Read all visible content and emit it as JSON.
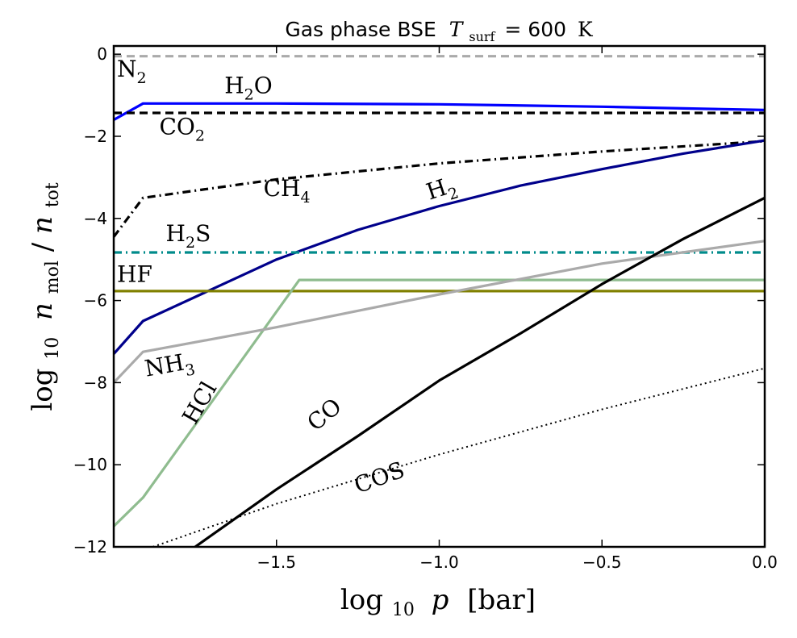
{
  "chart_data": {
    "type": "line",
    "title": "Gas phase BSE T_surf = 600 K",
    "title_parts": {
      "prefix": "Gas phase BSE",
      "math": "T",
      "sub": "surf",
      "eq": "= 600",
      "unit": "K"
    },
    "xlabel": "log10 p [bar]",
    "xlabel_parts": {
      "fn": "log",
      "sub": "10",
      "var": "p",
      "unit": "[bar]"
    },
    "ylabel": "log10 n_mol / n_tot",
    "ylabel_parts": {
      "fn": "log",
      "sub": "10",
      "num": "n",
      "num_sub": "mol",
      "den": "n",
      "den_sub": "tot"
    },
    "xlim": [
      -2.0,
      0.0
    ],
    "ylim": [
      -12,
      0.2
    ],
    "xticks": [
      {
        "value": -1.5,
        "label": "−1.5"
      },
      {
        "value": -1.0,
        "label": "−1.0"
      },
      {
        "value": -0.5,
        "label": "−0.5"
      },
      {
        "value": 0.0,
        "label": "0.0"
      }
    ],
    "yticks": [
      {
        "value": 0,
        "label": "0"
      },
      {
        "value": -2,
        "label": "−2"
      },
      {
        "value": -4,
        "label": "−4"
      },
      {
        "value": -6,
        "label": "−6"
      },
      {
        "value": -8,
        "label": "−8"
      },
      {
        "value": -10,
        "label": "−10"
      },
      {
        "value": -12,
        "label": "−12"
      }
    ],
    "grid": false,
    "series": [
      {
        "name": "N2",
        "label": "N",
        "label_sub": "2",
        "color": "#aaaaaa",
        "dash": "dashed",
        "x": [
          -2.0,
          0.0
        ],
        "y": [
          -0.05,
          -0.05
        ],
        "label_at": [
          -1.99,
          -0.55
        ],
        "label_rot": 0
      },
      {
        "name": "H2O",
        "label": "H",
        "label_sub": "2",
        "label_tail": "O",
        "color": "#0000ff",
        "dash": "solid",
        "x": [
          -2.0,
          -1.91,
          -1.5,
          -1.0,
          -0.5,
          0.0
        ],
        "y": [
          -1.6,
          -1.2,
          -1.2,
          -1.22,
          -1.28,
          -1.36
        ],
        "label_at": [
          -1.66,
          -0.95
        ],
        "label_rot": 0
      },
      {
        "name": "CO2",
        "label": "CO",
        "label_sub": "2",
        "color": "#000000",
        "dash": "dashed",
        "x": [
          -2.0,
          0.0
        ],
        "y": [
          -1.43,
          -1.43
        ],
        "label_at": [
          -1.86,
          -1.95
        ],
        "label_rot": 0
      },
      {
        "name": "CH4",
        "label": "CH",
        "label_sub": "4",
        "color": "#000000",
        "dash": "dashdot",
        "x": [
          -2.0,
          -1.91,
          -1.5,
          -1.0,
          -0.5,
          0.0
        ],
        "y": [
          -4.45,
          -3.5,
          -3.05,
          -2.66,
          -2.37,
          -2.12
        ],
        "label_at": [
          -1.54,
          -3.45
        ],
        "label_rot": 0
      },
      {
        "name": "H2",
        "label": "H",
        "label_sub": "2",
        "color": "#00008b",
        "dash": "solid",
        "x": [
          -2.0,
          -1.91,
          -1.5,
          -1.25,
          -1.0,
          -0.75,
          -0.5,
          -0.25,
          0.0
        ],
        "y": [
          -7.3,
          -6.5,
          -5.0,
          -4.28,
          -3.7,
          -3.2,
          -2.8,
          -2.42,
          -2.1
        ],
        "label_at": [
          -1.03,
          -3.55
        ],
        "label_rot": -18
      },
      {
        "name": "H2S",
        "label": "H",
        "label_sub": "2",
        "label_tail": "S",
        "color": "#008b8b",
        "dash": "dashdot",
        "x": [
          -2.0,
          0.0
        ],
        "y": [
          -4.83,
          -4.83
        ],
        "label_at": [
          -1.84,
          -4.55
        ],
        "label_rot": 0
      },
      {
        "name": "HF",
        "label": "HF",
        "color": "#808000",
        "dash": "solid",
        "x": [
          -2.0,
          0.0
        ],
        "y": [
          -5.77,
          -5.77
        ],
        "label_at": [
          -1.99,
          -5.55
        ],
        "label_rot": 0
      },
      {
        "name": "HCl",
        "label": "HCl",
        "color": "#8fbc8f",
        "dash": "solid",
        "x": [
          -2.0,
          -1.91,
          -1.43,
          0.0
        ],
        "y": [
          -11.5,
          -10.8,
          -5.5,
          -5.5
        ],
        "label_at": [
          -1.75,
          -9.05
        ],
        "label_rot": -60
      },
      {
        "name": "NH3",
        "label": "NH",
        "label_sub": "3",
        "color": "#aaaaaa",
        "dash": "solid",
        "x": [
          -2.0,
          -1.91,
          -1.5,
          -1.0,
          -0.5,
          0.0
        ],
        "y": [
          -8.0,
          -7.25,
          -6.65,
          -5.85,
          -5.1,
          -4.55
        ],
        "label_at": [
          -1.9,
          -7.85
        ],
        "label_rot": -10
      },
      {
        "name": "CO",
        "label": "CO",
        "color": "#000000",
        "dash": "solid",
        "x": [
          -1.75,
          -1.5,
          -1.25,
          -1.0,
          -0.75,
          -0.5,
          -0.25,
          0.0
        ],
        "y": [
          -12.0,
          -10.6,
          -9.3,
          -7.95,
          -6.8,
          -5.6,
          -4.5,
          -3.5
        ],
        "label_at": [
          -1.38,
          -9.2
        ],
        "label_rot": -40
      },
      {
        "name": "COS",
        "label": "COS",
        "color": "#000000",
        "dash": "dotted",
        "x": [
          -1.88,
          -1.5,
          -1.0,
          -0.5,
          0.0
        ],
        "y": [
          -12.0,
          -10.95,
          -9.75,
          -8.65,
          -7.65
        ],
        "label_at": [
          -1.25,
          -10.7
        ],
        "label_rot": -20
      }
    ]
  }
}
